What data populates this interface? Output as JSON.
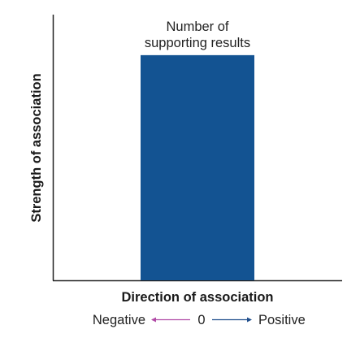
{
  "chart_data": {
    "type": "bar",
    "categories": [
      ""
    ],
    "values": [
      1
    ],
    "ylim": [
      0,
      1.18
    ],
    "bar_color": "#135392",
    "annotation_line1": "Number of",
    "annotation_line2": "supporting results",
    "xlabel": "Direction of association",
    "ylabel": "Strength of association",
    "direction_legend": {
      "negative": "Negative",
      "zero": "0",
      "positive": "Positive",
      "negative_arrow_color": "#b14aa6",
      "positive_arrow_color": "#1f4e8c"
    },
    "grid": false
  }
}
